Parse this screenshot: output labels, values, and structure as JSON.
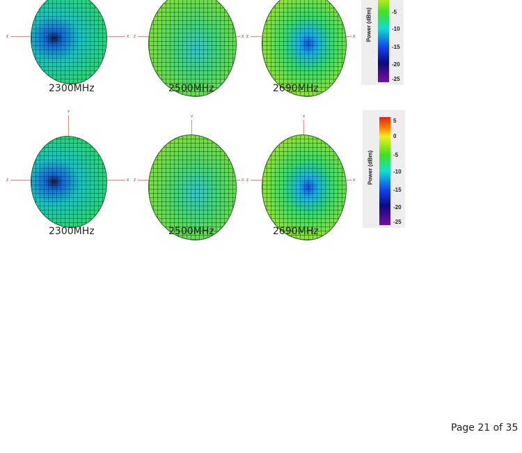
{
  "figure_rows": [
    {
      "patterns": [
        {
          "label": "2300MHz"
        },
        {
          "label": "2500MHz"
        },
        {
          "label": "2690MHz"
        }
      ]
    },
    {
      "patterns": [
        {
          "label": "2300MHz"
        },
        {
          "label": "2500MHz"
        },
        {
          "label": "2690MHz"
        }
      ]
    }
  ],
  "axis_labels": {
    "x": "X",
    "y": "Y",
    "z": "Z"
  },
  "colorbar": {
    "title": "Power (dBm)",
    "ticks": [
      "5",
      "0",
      "-5",
      "-10",
      "-15",
      "-20",
      "-25"
    ],
    "colors": [
      "#e82010",
      "#ff8000",
      "#f0f020",
      "#40e020",
      "#10e0d0",
      "#1040f0",
      "#0a0a80",
      "#7a10a0"
    ]
  },
  "footer": {
    "page_text": "Page 21 of 35"
  }
}
